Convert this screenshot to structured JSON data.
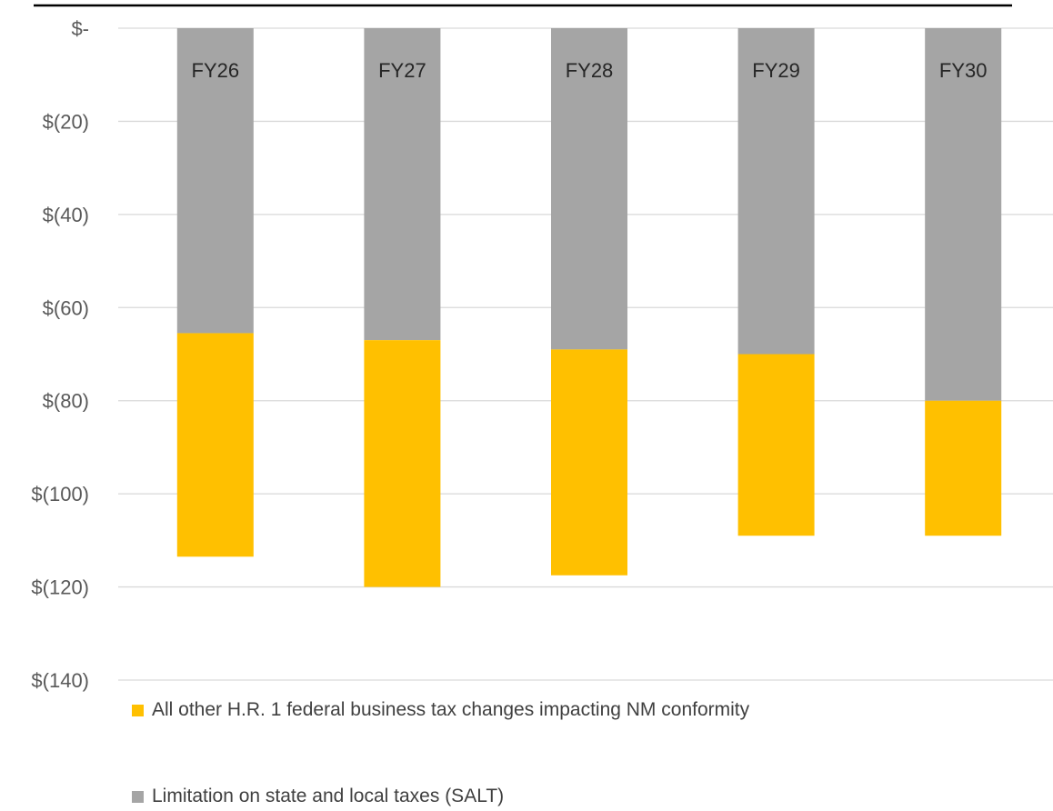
{
  "chart_data": {
    "type": "bar",
    "stacked": true,
    "categories": [
      "FY26",
      "FY27",
      "FY28",
      "FY29",
      "FY30"
    ],
    "series": [
      {
        "name": "Limitation on state and local taxes (SALT)",
        "values": [
          -65.5,
          -67,
          -69,
          -70,
          -80
        ],
        "color": "#a5a5a5"
      },
      {
        "name": "All other H.R. 1 federal business tax changes impacting NM conformity",
        "values": [
          -48,
          -53,
          -48.5,
          -39,
          -29
        ],
        "color": "#ffc000"
      }
    ],
    "y_ticks": [
      "$-",
      "$(20)",
      "$(40)",
      "$(60)",
      "$(80)",
      "$(100)",
      "$(120)",
      "$(140)"
    ],
    "ylim": [
      -140,
      0
    ],
    "grid": true,
    "legend_position": "bottom-left",
    "title": "",
    "xlabel": "",
    "ylabel": ""
  }
}
